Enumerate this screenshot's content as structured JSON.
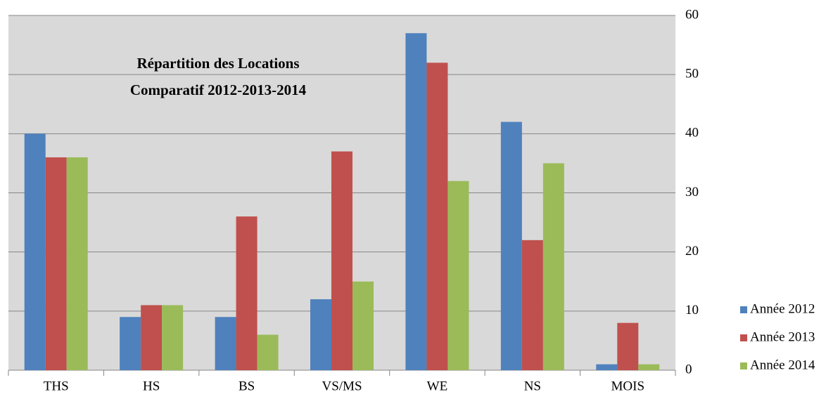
{
  "chart_data": {
    "type": "bar",
    "title": "Répartition des Locations",
    "subtitle": "Comparatif 2012-2013-2014",
    "categories": [
      "THS",
      "HS",
      "BS",
      "VS/MS",
      "WE",
      "NS",
      "MOIS"
    ],
    "series": [
      {
        "name": "Année 2012",
        "color": "#4f81bd",
        "values": [
          40,
          9,
          9,
          12,
          57,
          42,
          1
        ]
      },
      {
        "name": "Année 2013",
        "color": "#c0504d",
        "values": [
          36,
          11,
          26,
          37,
          52,
          22,
          8
        ]
      },
      {
        "name": "Année 2014",
        "color": "#9bbb59",
        "values": [
          36,
          11,
          6,
          15,
          32,
          35,
          1
        ]
      }
    ],
    "ylim": [
      0,
      60
    ],
    "yticks": [
      0,
      10,
      20,
      30,
      40,
      50,
      60
    ],
    "y_axis_side": "right",
    "grid": true,
    "legend": "right"
  }
}
